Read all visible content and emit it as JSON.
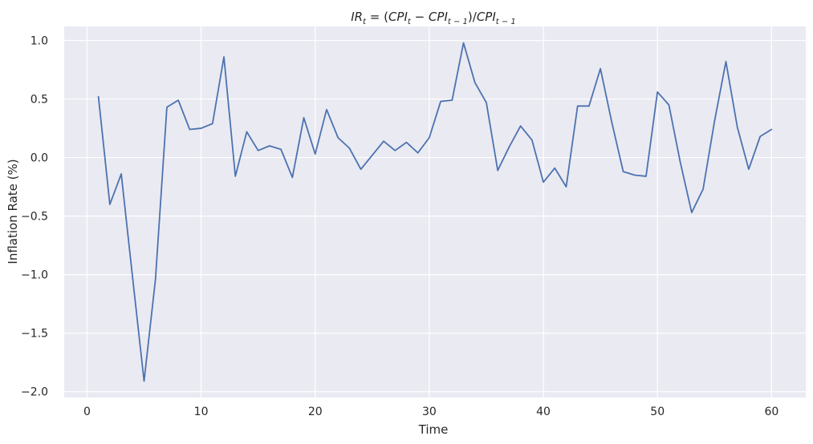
{
  "chart_data": {
    "type": "line",
    "title_parts": {
      "lhs": "IR",
      "lhs_sub": "t",
      "eq": " = (",
      "a": "CPI",
      "a_sub": "t",
      "minus": " − ",
      "b": "CPI",
      "b_sub": "t − 1",
      "close": ")/",
      "c": "CPI",
      "c_sub": "t − 1"
    },
    "xlabel": "Time",
    "ylabel": "Inflation Rate (%)",
    "xlim": [
      -2,
      63
    ],
    "ylim": [
      -2.05,
      1.12
    ],
    "xticks": [
      0,
      10,
      20,
      30,
      40,
      50,
      60
    ],
    "xtick_labels": [
      "0",
      "10",
      "20",
      "30",
      "40",
      "50",
      "60"
    ],
    "yticks": [
      -2.0,
      -1.5,
      -1.0,
      -0.5,
      0.0,
      0.5,
      1.0
    ],
    "ytick_labels": [
      "−2.0",
      "−1.5",
      "−1.0",
      "−0.5",
      "0.0",
      "0.5",
      "1.0"
    ],
    "grid": true,
    "background_color": "#eaeaf2",
    "series": [
      {
        "color": "#4c72b0",
        "x": [
          1,
          2,
          3,
          4,
          5,
          6,
          7,
          8,
          9,
          10,
          11,
          12,
          13,
          14,
          15,
          16,
          17,
          18,
          19,
          20,
          21,
          22,
          23,
          24,
          25,
          26,
          27,
          28,
          29,
          30,
          31,
          32,
          33,
          34,
          35,
          36,
          37,
          38,
          39,
          40,
          41,
          42,
          43,
          44,
          45,
          46,
          47,
          48,
          49,
          50,
          51,
          52,
          53,
          54,
          55,
          56,
          57,
          58,
          59,
          60
        ],
        "values": [
          0.52,
          -0.4,
          -0.14,
          -1.03,
          -1.91,
          -1.04,
          0.43,
          0.49,
          0.24,
          0.25,
          0.29,
          0.86,
          -0.16,
          0.22,
          0.06,
          0.1,
          0.07,
          -0.17,
          0.34,
          0.03,
          0.41,
          0.17,
          0.08,
          -0.1,
          0.02,
          0.14,
          0.06,
          0.13,
          0.04,
          0.17,
          0.48,
          0.49,
          0.98,
          0.64,
          0.47,
          -0.11,
          0.09,
          0.27,
          0.15,
          -0.21,
          -0.09,
          -0.25,
          0.44,
          0.44,
          0.76,
          0.3,
          -0.12,
          -0.15,
          -0.16,
          0.56,
          0.45,
          -0.04,
          -0.47,
          -0.27,
          0.31,
          0.82,
          0.26,
          -0.1,
          0.18,
          0.24
        ]
      }
    ]
  }
}
